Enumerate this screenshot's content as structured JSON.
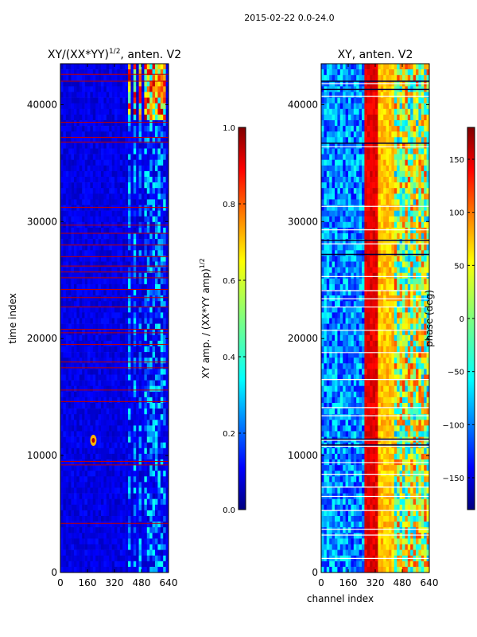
{
  "suptitle": "2015-02-22 0.0-24.0",
  "colors": {
    "jet": [
      "#00007f",
      "#0000ff",
      "#007fff",
      "#00ffff",
      "#7fff7f",
      "#ffff00",
      "#ff7f00",
      "#ff0000",
      "#7f0000"
    ],
    "flag_line": "#c00000",
    "white_line": "#ffffff",
    "dark_line": "#00003a"
  },
  "chart_data": [
    {
      "type": "heatmap",
      "title": "XY/(XX*YY)^1/2, anten. V2",
      "title_main": "XY/(XX*YY)",
      "title_sup": "1/2",
      "title_suffix": ", anten. V2",
      "xlabel": "",
      "ylabel": "time index",
      "xlim": [
        0,
        640
      ],
      "ylim": [
        0,
        43500
      ],
      "xticks": [
        "0",
        "160",
        "320",
        "480",
        "640"
      ],
      "yticks": [
        "0",
        "10000",
        "20000",
        "30000",
        "40000"
      ],
      "ytick_values": [
        0,
        10000,
        20000,
        30000,
        40000
      ],
      "xtick_values": [
        0,
        160,
        320,
        480,
        640
      ],
      "colorbar": {
        "label": "XY amp. / (XX*YY amp)^1/2",
        "label_main": "XY amp. / (XX*YY amp)",
        "label_sup": "1/2",
        "range": [
          0.0,
          1.0
        ],
        "ticks": [
          "0.0",
          "0.2",
          "0.4",
          "0.6",
          "0.8",
          "1.0"
        ],
        "tick_values": [
          0.0,
          0.2,
          0.4,
          0.6,
          0.8,
          1.0
        ]
      },
      "flagged_rows": [
        4200,
        9200,
        9500,
        14600,
        15600,
        17500,
        18000,
        19500,
        20500,
        20800,
        22700,
        23500,
        24200,
        25200,
        25700,
        26200,
        27000,
        28000,
        29000,
        29700,
        31200,
        36800,
        37200,
        38500,
        42000,
        42600
      ],
      "bright_channels": [
        410,
        440,
        470,
        510,
        540,
        580,
        610
      ],
      "hot_spot": {
        "channel": 195,
        "time": 11300
      }
    },
    {
      "type": "heatmap",
      "title": "XY, anten. V2",
      "xlabel": "channel index",
      "ylabel": "",
      "xlim": [
        0,
        640
      ],
      "ylim": [
        0,
        43500
      ],
      "xticks": [
        "0",
        "160",
        "320",
        "480",
        "640"
      ],
      "yticks": [
        "0",
        "10000",
        "20000",
        "30000",
        "40000"
      ],
      "ytick_values": [
        0,
        10000,
        20000,
        30000,
        40000
      ],
      "xtick_values": [
        0,
        160,
        320,
        480,
        640
      ],
      "colorbar": {
        "label": "phase (deg)",
        "range": [
          -180,
          180
        ],
        "ticks": [
          "−150",
          "−100",
          "−50",
          "0",
          "50",
          "100",
          "150"
        ],
        "tick_values": [
          -150,
          -100,
          -50,
          0,
          50,
          100,
          150
        ]
      },
      "white_rows": [
        1200,
        3200,
        3700,
        5300,
        6500,
        7300,
        8400,
        9400,
        10800,
        11300,
        13400,
        14100,
        16500,
        18800,
        20700,
        22700,
        23400,
        24100,
        25300,
        28100,
        29300,
        31300,
        36400,
        40700,
        41800
      ],
      "dark_rows": [
        10900,
        11400,
        27200,
        28400,
        36700,
        41300,
        42000
      ],
      "red_band": [
        250,
        340
      ],
      "yellow_band": [
        340,
        440
      ]
    }
  ]
}
